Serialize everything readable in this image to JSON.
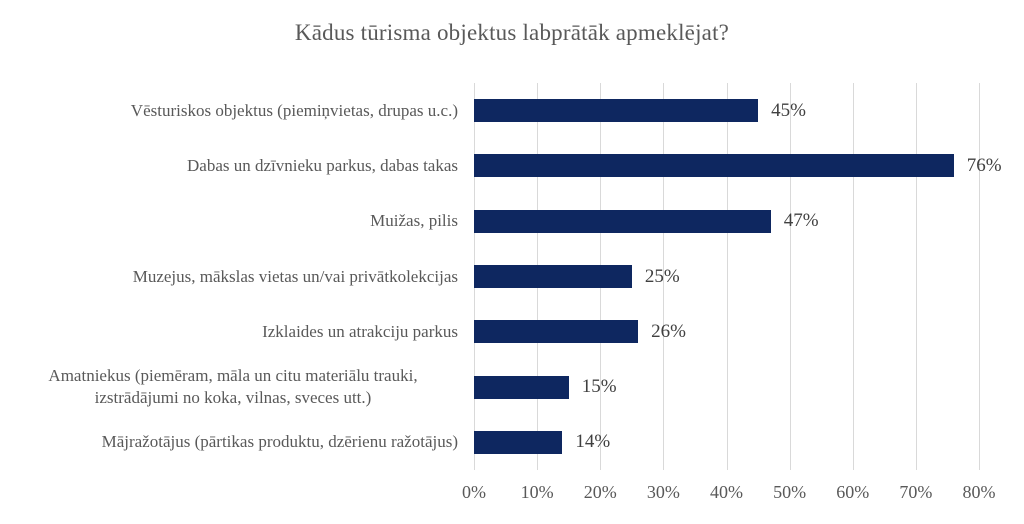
{
  "colors": {
    "bar": "#0e2760",
    "gridline": "#d9d9d9",
    "title_text": "#595959",
    "category_text": "#595959",
    "value_text": "#404040",
    "background": "#ffffff"
  },
  "chart_data": {
    "type": "bar",
    "orientation": "horizontal",
    "title": "Kādus tūrisma objektus labprātāk apmeklējat?",
    "categories": [
      "Vēsturiskos objektus (piemiņvietas, drupas u.c.)",
      "Dabas un dzīvnieku parkus, dabas takas",
      "Muižas, pilis",
      "Muzejus, mākslas vietas un/vai privātkolekcijas",
      "Izklaides un atrakciju parkus",
      "Amatniekus (piemēram, māla un citu materiālu trauki, izstrādājumi no koka, vilnas, sveces utt.)",
      "Mājražotājus (pārtikas produktu, dzērienu ražotājus)"
    ],
    "values": [
      45,
      76,
      47,
      25,
      26,
      15,
      14
    ],
    "value_labels": [
      "45%",
      "76%",
      "47%",
      "25%",
      "26%",
      "15%",
      "14%"
    ],
    "xlabel": "",
    "ylabel": "",
    "xlim": [
      0,
      80
    ],
    "x_tick_step": 10,
    "x_ticks": [
      "0%",
      "10%",
      "20%",
      "30%",
      "40%",
      "50%",
      "60%",
      "70%",
      "80%"
    ],
    "grid": "vertical",
    "legend": "none",
    "data_labels": "outside-end"
  }
}
